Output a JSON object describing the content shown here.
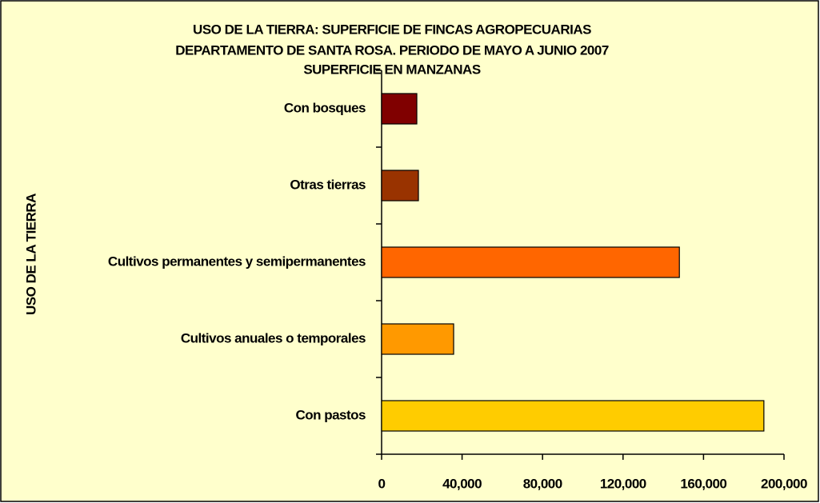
{
  "chart_data": {
    "type": "bar",
    "orientation": "horizontal",
    "title": [
      "USO DE LA TIERRA: SUPERFICIE DE FINCAS AGROPECUARIAS",
      "DEPARTAMENTO DE SANTA ROSA. PERIODO DE MAYO A JUNIO 2007",
      "SUPERFICIE EN MANZANAS"
    ],
    "y_label": "USO DE LA TIERRA",
    "categories": [
      "Con bosques",
      "Otras tierras",
      "Cultivos permanentes y semipermanentes",
      "Cultivos anuales o temporales",
      "Con pastos"
    ],
    "values": [
      17500,
      18300,
      148000,
      35800,
      190000
    ],
    "colors": [
      "#800000",
      "#993300",
      "#FF6600",
      "#FF9900",
      "#FFCC00"
    ],
    "xlim": [
      0,
      200000
    ],
    "xticks": [
      0,
      {
        "value": 40000,
        "label": "40,000"
      },
      {
        "value": 80000,
        "label": "80,000"
      },
      {
        "value": 120000,
        "label": "120,000"
      },
      {
        "value": 160000,
        "label": "160,000"
      },
      {
        "value": 200000,
        "label": "200,000"
      }
    ],
    "background": "#FFFFCC",
    "grid": false
  }
}
